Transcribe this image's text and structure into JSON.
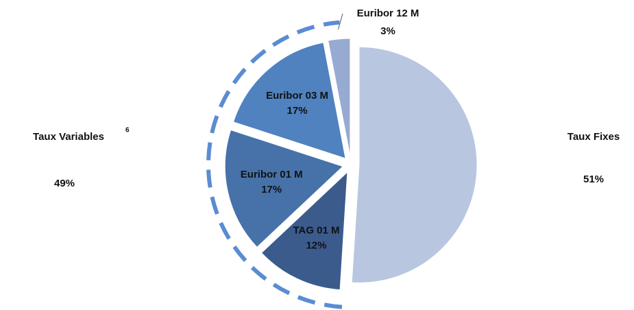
{
  "chart_data": {
    "type": "pie",
    "categories": [
      "Taux Fixes",
      "TAG 01 M",
      "Euribor 01 M",
      "Euribor 03 M",
      "Euribor 12 M"
    ],
    "values": [
      51,
      12,
      17,
      17,
      3
    ],
    "value_labels": [
      "51%",
      "12%",
      "17%",
      "17%",
      "3%"
    ],
    "colors": [
      "#b9c6e0",
      "#3b5b8d",
      "#4672a9",
      "#4f82bf",
      "#97aad2"
    ],
    "group_label": "Taux Variables",
    "group_footnote": "6",
    "group_value": 49,
    "group_value_label": "49%",
    "group_color": "#5a8cd2"
  }
}
